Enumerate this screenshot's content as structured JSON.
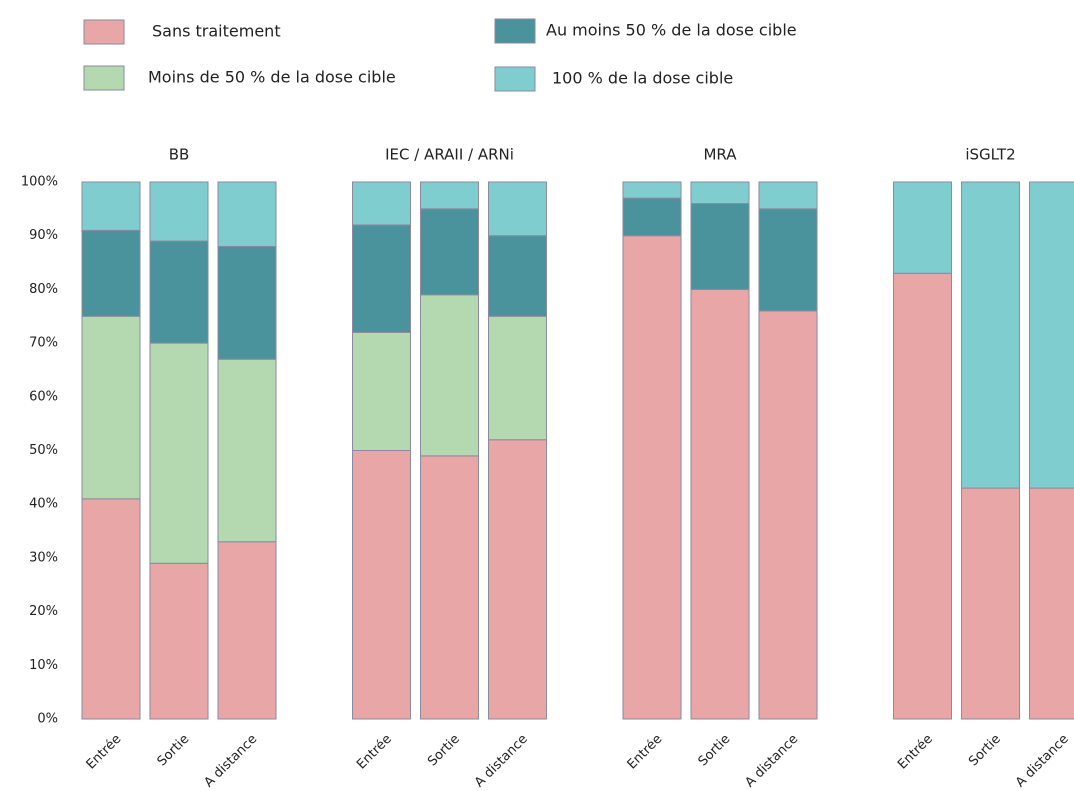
{
  "chart_data": {
    "type": "bar",
    "stacked": true,
    "groups": [
      "BB",
      "IEC / ARAII / ARNi",
      "MRA",
      "iSGLT2"
    ],
    "categories": [
      "Entrée",
      "Sortie",
      "A distance",
      "Entrée",
      "Sortie",
      "A distance",
      "Entrée",
      "Sortie",
      "A distance",
      "Entrée",
      "Sortie",
      "A distance"
    ],
    "series": [
      {
        "name": "Sans traitement",
        "color": "#e8a6a6",
        "values": [
          41,
          29,
          33,
          50,
          49,
          52,
          90,
          80,
          76,
          83,
          43,
          43
        ]
      },
      {
        "name": "Moins de 50 % de la dose cible",
        "color": "#b4d8b0",
        "values": [
          34,
          41,
          34,
          22,
          30,
          23,
          0,
          0,
          0,
          0,
          0,
          0
        ]
      },
      {
        "name": "Au moins 50 % de la dose cible",
        "color": "#4a939c",
        "values": [
          16,
          19,
          21,
          20,
          16,
          15,
          7,
          16,
          19,
          0,
          0,
          0
        ]
      },
      {
        "name": "100 % de la dose cible",
        "color": "#80cdd0",
        "values": [
          9,
          11,
          12,
          8,
          5,
          10,
          3,
          4,
          5,
          17,
          57,
          57
        ]
      }
    ],
    "ylim": [
      0,
      100
    ],
    "yticks": [
      {
        "value": 0,
        "label": "0%"
      },
      {
        "value": 10,
        "label": "10%"
      },
      {
        "value": 20,
        "label": "20%"
      },
      {
        "value": 30,
        "label": "30%"
      },
      {
        "value": 40,
        "label": "40%"
      },
      {
        "value": 50,
        "label": "50%"
      },
      {
        "value": 60,
        "label": "60%"
      },
      {
        "value": 70,
        "label": "70%"
      },
      {
        "value": 80,
        "label": "80%"
      },
      {
        "value": 90,
        "label": "90%"
      },
      {
        "value": 100,
        "label": "100%"
      }
    ],
    "grid": false
  }
}
